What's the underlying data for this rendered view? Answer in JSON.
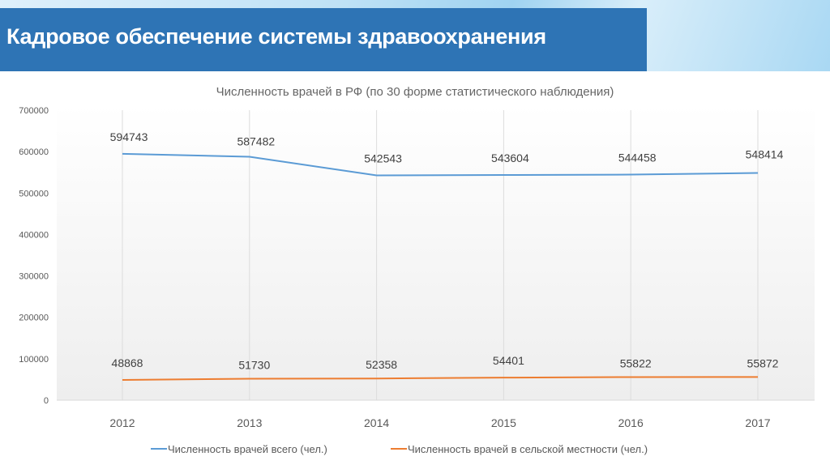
{
  "slide": {
    "title": "Кадровое обеспечение системы здравоохранения"
  },
  "chart_data": {
    "type": "line",
    "title": "Численность врачей в РФ (по 30 форме статистического наблюдения)",
    "categories": [
      "2012",
      "2013",
      "2014",
      "2015",
      "2016",
      "2017"
    ],
    "ylim": [
      0,
      700000
    ],
    "yticks": [
      "0",
      "100000",
      "200000",
      "300000",
      "400000",
      "500000",
      "600000",
      "700000"
    ],
    "grid": "vertical",
    "legend_position": "bottom",
    "series": [
      {
        "name": "Численность врачей всего (чел.)",
        "color": "#5b9bd5",
        "values": [
          594743,
          587482,
          542543,
          543604,
          544458,
          548414
        ]
      },
      {
        "name": "Численность врачей в сельской местности (чел.)",
        "color": "#ed7d31",
        "values": [
          48868,
          51730,
          52358,
          54401,
          55822,
          55872
        ]
      }
    ]
  }
}
